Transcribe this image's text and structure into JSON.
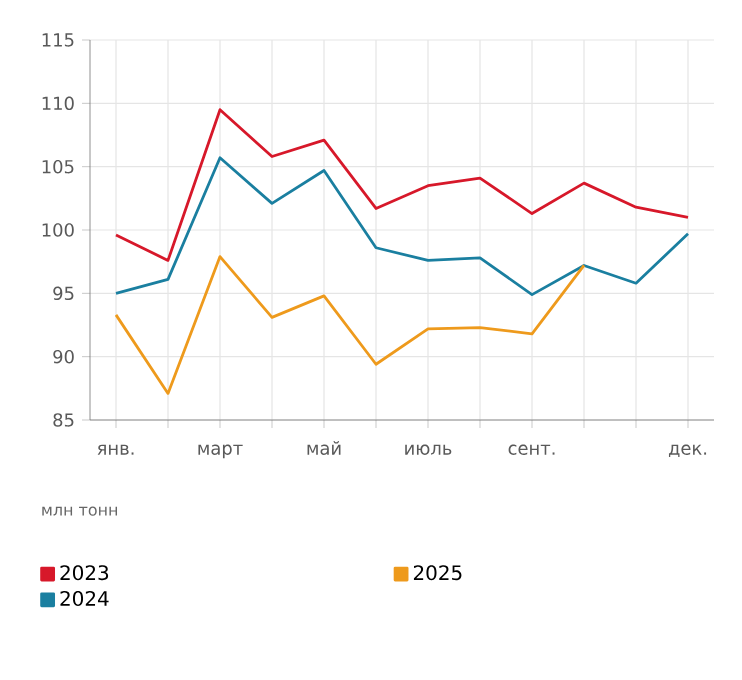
{
  "chart_data": {
    "type": "line",
    "ylabel": "млн тонн",
    "categories": [
      "янв.",
      null,
      "март",
      null,
      "май",
      null,
      "июль",
      null,
      "сент.",
      null,
      null,
      "дек."
    ],
    "series": [
      {
        "name": "2023",
        "color": "#d7182a",
        "values": [
          99.6,
          97.6,
          109.5,
          105.8,
          107.1,
          101.7,
          103.5,
          104.1,
          101.3,
          103.7,
          101.8,
          101.0
        ]
      },
      {
        "name": "2024",
        "color": "#1a7fa0",
        "values": [
          95.0,
          96.1,
          105.7,
          102.1,
          104.7,
          98.6,
          97.6,
          97.8,
          94.9,
          97.2,
          95.8,
          99.7
        ]
      },
      {
        "name": "2025",
        "color": "#ee9a1c",
        "values": [
          93.3,
          87.1,
          97.9,
          93.1,
          94.8,
          89.4,
          92.2,
          92.3,
          91.8,
          97.2,
          null,
          null
        ]
      }
    ],
    "ylim": [
      85,
      115
    ],
    "yticks": [
      85,
      90,
      95,
      100,
      105,
      110,
      115
    ],
    "grid": true,
    "legend": "bottom"
  }
}
